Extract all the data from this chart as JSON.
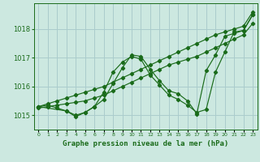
{
  "background_color": "#cce8e0",
  "grid_color": "#aacccc",
  "line_color": "#1a6b1a",
  "marker_color": "#1a6b1a",
  "title": "Graphe pression niveau de la mer (hPa)",
  "ylabel_ticks": [
    1015,
    1016,
    1017,
    1018
  ],
  "xlim": [
    -0.5,
    23.5
  ],
  "ylim": [
    1014.5,
    1018.9
  ],
  "series": [
    {
      "x": [
        0,
        1,
        2,
        3,
        4,
        5,
        6,
        7,
        8,
        9,
        10,
        11,
        12,
        13,
        14,
        15,
        16,
        17,
        18,
        19,
        20,
        21,
        22,
        23
      ],
      "y": [
        1015.3,
        1015.4,
        1015.5,
        1015.6,
        1015.7,
        1015.8,
        1015.9,
        1016.0,
        1016.15,
        1016.3,
        1016.45,
        1016.6,
        1016.75,
        1016.9,
        1017.05,
        1017.2,
        1017.35,
        1017.5,
        1017.65,
        1017.8,
        1017.9,
        1018.0,
        1018.1,
        1018.6
      ]
    },
    {
      "x": [
        0,
        1,
        2,
        3,
        4,
        5,
        6,
        7,
        8,
        9,
        10,
        11,
        12,
        13,
        14,
        15,
        16,
        17,
        18,
        19,
        20,
        21,
        22,
        23
      ],
      "y": [
        1015.25,
        1015.3,
        1015.35,
        1015.4,
        1015.45,
        1015.5,
        1015.6,
        1015.7,
        1015.85,
        1016.0,
        1016.15,
        1016.3,
        1016.45,
        1016.6,
        1016.75,
        1016.85,
        1016.95,
        1017.05,
        1017.2,
        1017.35,
        1017.5,
        1017.65,
        1017.8,
        1018.2
      ]
    },
    {
      "x": [
        0,
        1,
        2,
        3,
        4,
        5,
        6,
        7,
        8,
        9,
        10,
        11,
        12,
        13,
        14,
        15,
        16,
        17,
        18,
        19,
        20,
        21,
        22,
        23
      ],
      "y": [
        1015.3,
        1015.35,
        1015.25,
        1015.15,
        1014.95,
        1015.1,
        1015.3,
        1015.8,
        1016.5,
        1016.85,
        1017.05,
        1016.95,
        1016.4,
        1016.05,
        1015.7,
        1015.55,
        1015.35,
        1015.1,
        1015.2,
        1016.5,
        1017.2,
        1017.9,
        1017.95,
        1018.5
      ]
    },
    {
      "x": [
        0,
        3,
        4,
        5,
        6,
        7,
        8,
        9,
        10,
        11,
        12,
        13,
        14,
        15,
        16,
        17,
        18,
        19,
        20,
        21,
        22,
        23
      ],
      "y": [
        1015.3,
        1015.15,
        1015.0,
        1015.1,
        1015.3,
        1015.55,
        1016.1,
        1016.65,
        1017.1,
        1017.05,
        1016.6,
        1016.2,
        1015.85,
        1015.75,
        1015.5,
        1015.05,
        1016.55,
        1017.1,
        1017.75,
        1017.85,
        1017.95,
        1018.5
      ]
    }
  ]
}
